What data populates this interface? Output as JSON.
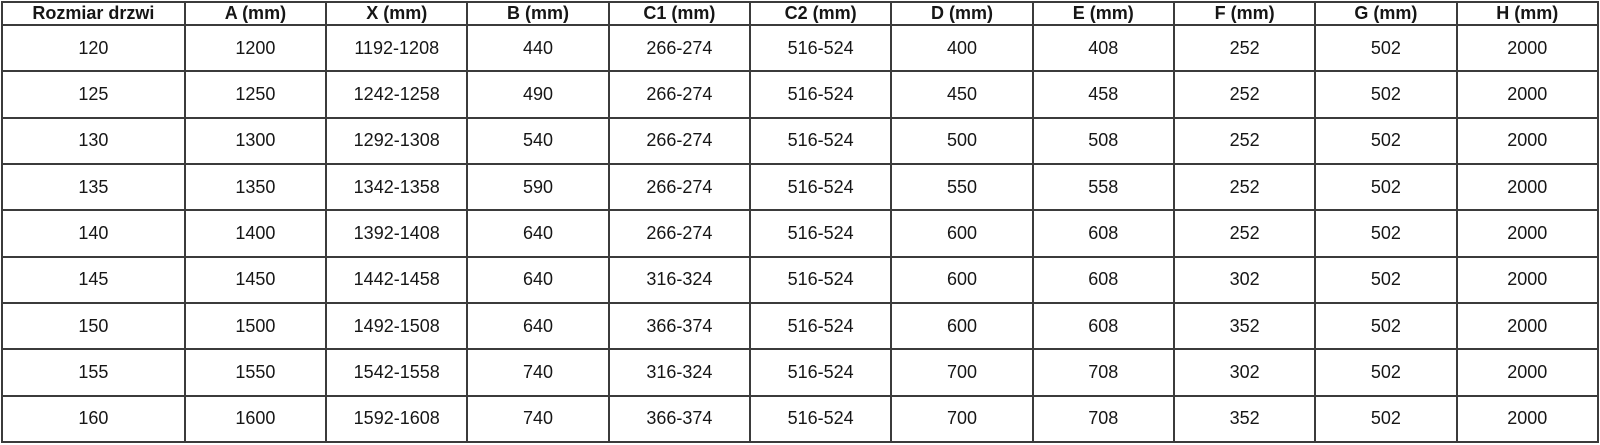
{
  "chart_data": {
    "type": "table",
    "title": "",
    "headers": [
      "Rozmiar drzwi",
      "A (mm)",
      "X (mm)",
      "B (mm)",
      "C1 (mm)",
      "C2 (mm)",
      "D (mm)",
      "E (mm)",
      "F (mm)",
      "G (mm)",
      "H (mm)"
    ],
    "rows": [
      [
        "120",
        "1200",
        "1192-1208",
        "440",
        "266-274",
        "516-524",
        "400",
        "408",
        "252",
        "502",
        "2000"
      ],
      [
        "125",
        "1250",
        "1242-1258",
        "490",
        "266-274",
        "516-524",
        "450",
        "458",
        "252",
        "502",
        "2000"
      ],
      [
        "130",
        "1300",
        "1292-1308",
        "540",
        "266-274",
        "516-524",
        "500",
        "508",
        "252",
        "502",
        "2000"
      ],
      [
        "135",
        "1350",
        "1342-1358",
        "590",
        "266-274",
        "516-524",
        "550",
        "558",
        "252",
        "502",
        "2000"
      ],
      [
        "140",
        "1400",
        "1392-1408",
        "640",
        "266-274",
        "516-524",
        "600",
        "608",
        "252",
        "502",
        "2000"
      ],
      [
        "145",
        "1450",
        "1442-1458",
        "640",
        "316-324",
        "516-524",
        "600",
        "608",
        "302",
        "502",
        "2000"
      ],
      [
        "150",
        "1500",
        "1492-1508",
        "640",
        "366-374",
        "516-524",
        "600",
        "608",
        "352",
        "502",
        "2000"
      ],
      [
        "155",
        "1550",
        "1542-1558",
        "740",
        "316-324",
        "516-524",
        "700",
        "708",
        "302",
        "502",
        "2000"
      ],
      [
        "160",
        "1600",
        "1592-1608",
        "740",
        "366-374",
        "516-524",
        "700",
        "708",
        "352",
        "502",
        "2000"
      ]
    ],
    "colors": {
      "border": "#3b3b3b",
      "text": "#161616",
      "background": "#ffffff"
    }
  }
}
